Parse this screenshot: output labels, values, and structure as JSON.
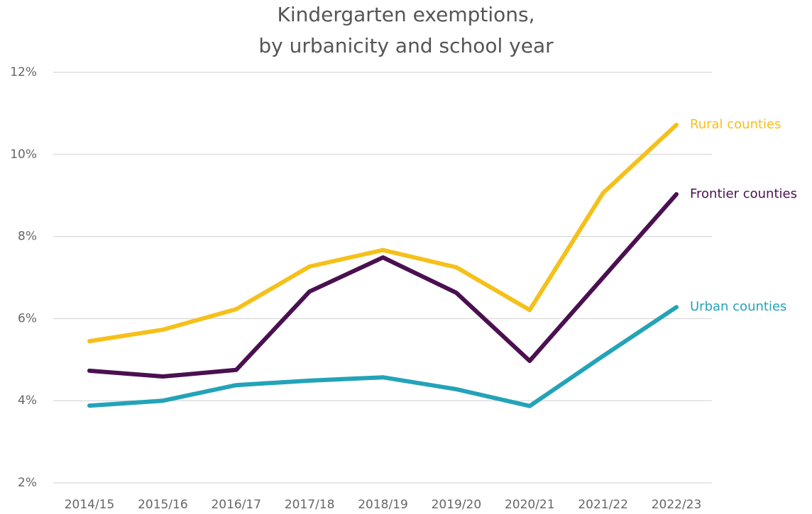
{
  "chart_data": {
    "type": "line",
    "title": [
      "Kindergarten exemptions,",
      "by urbanicity and school year"
    ],
    "categories": [
      "2014/15",
      "2015/16",
      "2016/17",
      "2017/18",
      "2018/19",
      "2019/20",
      "2020/21",
      "2021/22",
      "2022/23"
    ],
    "series": [
      {
        "name": "Rural counties",
        "color": "#f5c01a",
        "values": [
          5.45,
          5.73,
          6.23,
          7.27,
          7.67,
          7.25,
          6.21,
          9.06,
          10.72
        ]
      },
      {
        "name": "Frontier counties",
        "color": "#4a1050",
        "values": [
          4.73,
          4.59,
          4.75,
          6.66,
          7.49,
          6.63,
          4.97,
          7.0,
          9.03
        ]
      },
      {
        "name": "Urban counties",
        "color": "#23a3b8",
        "values": [
          3.88,
          4.0,
          4.38,
          4.49,
          4.57,
          4.28,
          3.87,
          5.09,
          6.28
        ]
      }
    ],
    "ylim": [
      2,
      12
    ],
    "yticks": [
      {
        "value": 2,
        "label": "2%"
      },
      {
        "value": 4,
        "label": "4%"
      },
      {
        "value": 6,
        "label": "6%"
      },
      {
        "value": 8,
        "label": "8%"
      },
      {
        "value": 10,
        "label": "10%"
      },
      {
        "value": 12,
        "label": "12%"
      }
    ],
    "grid": true
  }
}
